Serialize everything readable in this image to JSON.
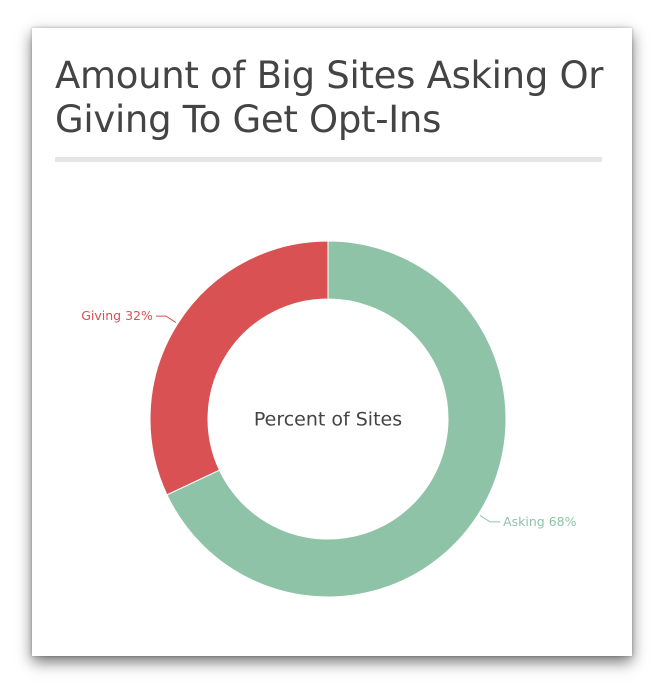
{
  "chart_data": {
    "type": "pie",
    "style": "donut",
    "title": "Amount of Big Sites Asking Or Giving To Get Opt-Ins",
    "center_label": "Percent of Sites",
    "slices": [
      {
        "label": "Asking",
        "value": 68,
        "display": "Asking 68%",
        "color": "#8ec3a7"
      },
      {
        "label": "Giving",
        "value": 32,
        "display": "Giving 32%",
        "color": "#d95153"
      }
    ]
  }
}
